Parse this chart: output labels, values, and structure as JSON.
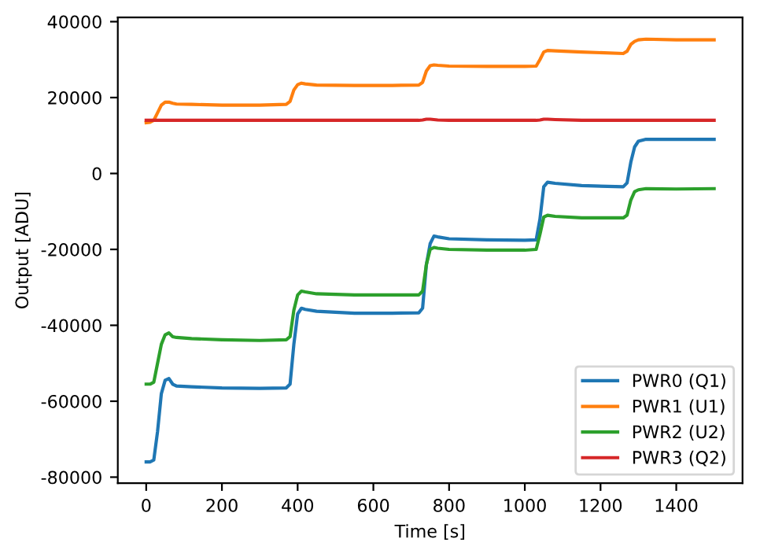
{
  "chart_data": {
    "type": "line",
    "xlabel": "Time [s]",
    "ylabel": "Output [ADU]",
    "x": [
      0,
      10,
      20,
      30,
      40,
      50,
      60,
      70,
      80,
      120,
      200,
      300,
      370,
      380,
      390,
      400,
      410,
      420,
      450,
      550,
      650,
      720,
      730,
      740,
      750,
      760,
      770,
      800,
      900,
      1000,
      1030,
      1040,
      1050,
      1060,
      1080,
      1150,
      1260,
      1270,
      1280,
      1290,
      1300,
      1320,
      1400,
      1500
    ],
    "series": [
      {
        "name": "PWR0 (Q1)",
        "color": "#1f77b4",
        "values": [
          -76000,
          -76000,
          -75500,
          -68000,
          -58000,
          -54500,
          -54000,
          -55500,
          -56000,
          -56200,
          -56500,
          -56600,
          -56500,
          -55500,
          -45000,
          -37000,
          -35500,
          -35800,
          -36300,
          -36800,
          -36800,
          -36700,
          -35500,
          -24000,
          -18500,
          -16500,
          -16700,
          -17200,
          -17500,
          -17600,
          -17500,
          -12000,
          -3500,
          -2300,
          -2600,
          -3200,
          -3500,
          -2500,
          3000,
          7000,
          8500,
          9000,
          9000,
          9000
        ]
      },
      {
        "name": "PWR1 (U1)",
        "color": "#ff7f0e",
        "values": [
          13400,
          13500,
          14000,
          16000,
          18000,
          18800,
          18800,
          18500,
          18300,
          18200,
          18000,
          18000,
          18200,
          19000,
          22000,
          23400,
          23800,
          23600,
          23300,
          23200,
          23200,
          23300,
          24000,
          27000,
          28400,
          28600,
          28500,
          28300,
          28200,
          28200,
          28300,
          30000,
          32000,
          32400,
          32300,
          32000,
          31600,
          32200,
          34000,
          34800,
          35200,
          35400,
          35200,
          35200
        ]
      },
      {
        "name": "PWR2 (U2)",
        "color": "#2ca02c",
        "values": [
          -55500,
          -55500,
          -55000,
          -50000,
          -45000,
          -42500,
          -42000,
          -43000,
          -43200,
          -43500,
          -43800,
          -44000,
          -43800,
          -43000,
          -36000,
          -32000,
          -31000,
          -31200,
          -31700,
          -32000,
          -32000,
          -32000,
          -31000,
          -24000,
          -20000,
          -19500,
          -19700,
          -20000,
          -20200,
          -20200,
          -20000,
          -16000,
          -11500,
          -11000,
          -11300,
          -11700,
          -11700,
          -11000,
          -7000,
          -4800,
          -4300,
          -4000,
          -4100,
          -4000
        ]
      },
      {
        "name": "PWR3 (Q2)",
        "color": "#d62728",
        "values": [
          14000,
          14000,
          14000,
          14000,
          14000,
          14000,
          14000,
          14000,
          14000,
          14000,
          14000,
          14000,
          14000,
          14000,
          14000,
          14000,
          14000,
          14000,
          14000,
          14000,
          14000,
          14000,
          14100,
          14300,
          14300,
          14200,
          14100,
          14000,
          14000,
          14000,
          14000,
          14100,
          14300,
          14300,
          14200,
          14000,
          14000,
          14000,
          14000,
          14000,
          14000,
          14000,
          14000,
          14000
        ]
      }
    ],
    "xlim": [
      -75,
      1575
    ],
    "xticks": [
      0,
      200,
      400,
      600,
      800,
      1000,
      1200,
      1400
    ],
    "ylim": [
      -81600,
      41100
    ],
    "yticks": [
      -80000,
      -60000,
      -40000,
      -20000,
      0,
      20000,
      40000
    ],
    "grid": false,
    "legend": "lower right",
    "line_style": "solid",
    "marker": "none"
  }
}
